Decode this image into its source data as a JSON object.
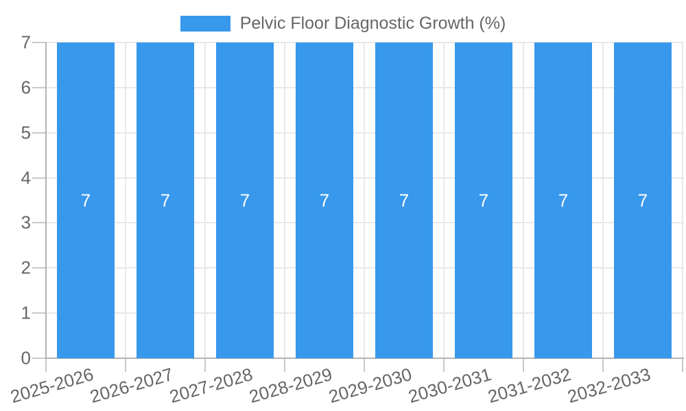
{
  "chart": {
    "legend": {
      "label": "Pelvic Floor Diagnostic Growth (%)"
    }
  },
  "colors": {
    "bar": "#3898ec",
    "grid": "#e8e8e8",
    "axis": "#b3b3b3",
    "tick": "#c9c9c9",
    "text": "#666666",
    "value_label": "#ffffff"
  },
  "chart_data": {
    "type": "bar",
    "title": "Pelvic Floor Diagnostic Growth (%)",
    "categories": [
      "2025-2026",
      "2026-2027",
      "2027-2028",
      "2028-2029",
      "2029-2030",
      "2030-2031",
      "2031-2032",
      "2032-2033"
    ],
    "values": [
      7,
      7,
      7,
      7,
      7,
      7,
      7,
      7
    ],
    "bar_value_labels": [
      "7",
      "7",
      "7",
      "7",
      "7",
      "7",
      "7",
      "7"
    ],
    "xlabel": "",
    "ylabel": "",
    "ylim": [
      0,
      7
    ],
    "yticks": [
      0,
      1,
      2,
      3,
      4,
      5,
      6,
      7
    ],
    "grid": true,
    "legend_position": "top"
  }
}
